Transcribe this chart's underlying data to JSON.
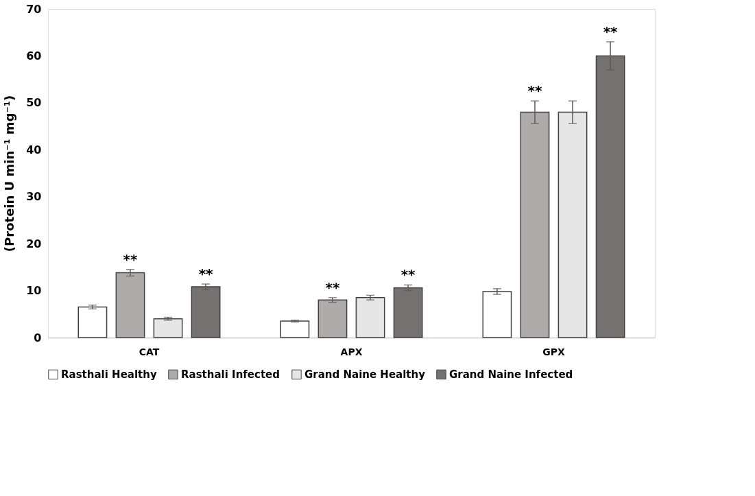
{
  "chart_data": {
    "type": "bar",
    "ylabel": "(Protein U min⁻¹ mg⁻¹)",
    "categories": [
      "CAT",
      "APX",
      "GPX"
    ],
    "series": [
      {
        "name": "Rasthali Healthy",
        "color": "#ffffff",
        "values": [
          6.5,
          3.5,
          9.8
        ],
        "errors": [
          0.4,
          0.2,
          0.6
        ],
        "value_labels": [
          null,
          null,
          null
        ]
      },
      {
        "name": "Rasthali Infected",
        "color": "#afabab",
        "values": [
          13.8,
          8.0,
          48.0
        ],
        "errors": [
          0.7,
          0.5,
          2.4
        ],
        "value_labels": [
          "**",
          "**",
          "**"
        ]
      },
      {
        "name": "Grand Naine Healthy",
        "color": "#e7e6e6",
        "values": [
          4.0,
          8.5,
          48.0
        ],
        "errors": [
          0.3,
          0.5,
          2.4
        ],
        "value_labels": [
          null,
          null,
          null
        ]
      },
      {
        "name": "Grand Naine Infected",
        "color": "#767171",
        "values": [
          10.8,
          10.6,
          60.0
        ],
        "errors": [
          0.6,
          0.6,
          3.0
        ],
        "value_labels": [
          "**",
          "**",
          "**"
        ]
      }
    ],
    "ylim": [
      0,
      70
    ],
    "yticks": [
      0,
      10,
      20,
      30,
      40,
      50,
      60,
      70
    ],
    "grid": false,
    "legend": "bottom"
  }
}
